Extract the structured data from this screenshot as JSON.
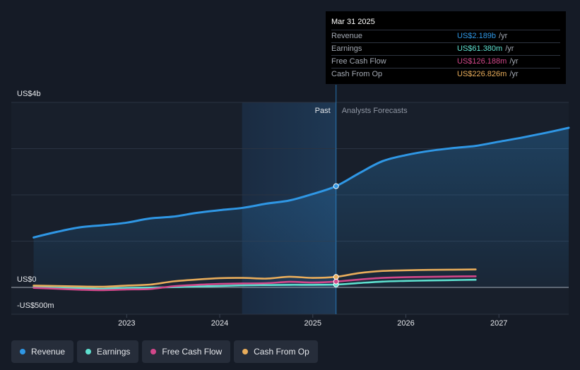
{
  "chart_data": {
    "type": "line",
    "title": "",
    "xlabel": "",
    "ylabel": "",
    "ylim": [
      -500,
      4000
    ],
    "y_labels": [
      {
        "value": 4000,
        "text": "US$4b"
      },
      {
        "value": 0,
        "text": "US$0"
      },
      {
        "value": -500,
        "text": "-US$500m"
      }
    ],
    "x_ticks": [
      {
        "value": 2023,
        "text": "2023"
      },
      {
        "value": 2024,
        "text": "2024"
      },
      {
        "value": 2025,
        "text": "2025"
      },
      {
        "value": 2026,
        "text": "2026"
      },
      {
        "value": 2027,
        "text": "2027"
      }
    ],
    "xlim": [
      2021.76,
      2027.75
    ],
    "shaded_region_start": 2024.24,
    "divider_x": 2025.25,
    "past_label": "Past",
    "forecast_label": "Analysts Forecasts",
    "series": [
      {
        "name": "Revenue",
        "color": "#2f97e5",
        "filled": true,
        "points": [
          [
            2022.0,
            1080
          ],
          [
            2022.25,
            1200
          ],
          [
            2022.5,
            1300
          ],
          [
            2022.75,
            1345
          ],
          [
            2023.0,
            1400
          ],
          [
            2023.25,
            1490
          ],
          [
            2023.5,
            1530
          ],
          [
            2023.75,
            1610
          ],
          [
            2024.0,
            1670
          ],
          [
            2024.25,
            1720
          ],
          [
            2024.5,
            1810
          ],
          [
            2024.75,
            1880
          ],
          [
            2025.0,
            2020
          ],
          [
            2025.25,
            2189
          ],
          [
            2025.5,
            2470
          ],
          [
            2025.75,
            2730
          ],
          [
            2026.0,
            2860
          ],
          [
            2026.25,
            2950
          ],
          [
            2026.5,
            3010
          ],
          [
            2026.75,
            3060
          ],
          [
            2027.0,
            3150
          ],
          [
            2027.25,
            3240
          ],
          [
            2027.5,
            3340
          ],
          [
            2027.75,
            3450
          ]
        ]
      },
      {
        "name": "Earnings",
        "color": "#5ee0cf",
        "filled": false,
        "points": [
          [
            2022.0,
            10
          ],
          [
            2022.25,
            -10
          ],
          [
            2022.5,
            -20
          ],
          [
            2022.75,
            -30
          ],
          [
            2023.0,
            -10
          ],
          [
            2023.25,
            -5
          ],
          [
            2023.5,
            5
          ],
          [
            2023.75,
            20
          ],
          [
            2024.0,
            30
          ],
          [
            2024.25,
            45
          ],
          [
            2024.5,
            50
          ],
          [
            2024.75,
            55
          ],
          [
            2025.0,
            55
          ],
          [
            2025.25,
            61
          ],
          [
            2025.5,
            95
          ],
          [
            2025.75,
            125
          ],
          [
            2026.0,
            140
          ],
          [
            2026.25,
            150
          ],
          [
            2026.5,
            158
          ],
          [
            2026.75,
            165
          ]
        ]
      },
      {
        "name": "Free Cash Flow",
        "color": "#d2478a",
        "filled": false,
        "points": [
          [
            2022.0,
            -10
          ],
          [
            2022.25,
            -30
          ],
          [
            2022.5,
            -50
          ],
          [
            2022.75,
            -60
          ],
          [
            2023.0,
            -45
          ],
          [
            2023.25,
            -35
          ],
          [
            2023.5,
            25
          ],
          [
            2023.75,
            55
          ],
          [
            2024.0,
            75
          ],
          [
            2024.25,
            85
          ],
          [
            2024.5,
            90
          ],
          [
            2024.75,
            120
          ],
          [
            2025.0,
            105
          ],
          [
            2025.25,
            126
          ],
          [
            2025.5,
            170
          ],
          [
            2025.75,
            205
          ],
          [
            2026.0,
            220
          ],
          [
            2026.25,
            228
          ],
          [
            2026.5,
            235
          ],
          [
            2026.75,
            240
          ]
        ]
      },
      {
        "name": "Cash From Op",
        "color": "#e9ad5b",
        "filled": false,
        "points": [
          [
            2022.0,
            40
          ],
          [
            2022.25,
            30
          ],
          [
            2022.5,
            20
          ],
          [
            2022.75,
            15
          ],
          [
            2023.0,
            40
          ],
          [
            2023.25,
            60
          ],
          [
            2023.5,
            130
          ],
          [
            2023.75,
            170
          ],
          [
            2024.0,
            200
          ],
          [
            2024.25,
            205
          ],
          [
            2024.5,
            190
          ],
          [
            2024.75,
            230
          ],
          [
            2025.0,
            205
          ],
          [
            2025.25,
            227
          ],
          [
            2025.5,
            310
          ],
          [
            2025.75,
            355
          ],
          [
            2026.0,
            370
          ],
          [
            2026.25,
            378
          ],
          [
            2026.5,
            383
          ],
          [
            2026.75,
            388
          ]
        ]
      }
    ],
    "highlight": {
      "x": 2025.25,
      "date": "Mar 31 2025",
      "values": [
        2189,
        61.38,
        126.188,
        226.826
      ]
    }
  },
  "tooltip": {
    "date": "Mar 31 2025",
    "unit": "/yr",
    "rows": [
      {
        "label": "Revenue",
        "value": "US$2.189b",
        "color": "#2f97e5"
      },
      {
        "label": "Earnings",
        "value": "US$61.380m",
        "color": "#5ee0cf"
      },
      {
        "label": "Free Cash Flow",
        "value": "US$126.188m",
        "color": "#d2478a"
      },
      {
        "label": "Cash From Op",
        "value": "US$226.826m",
        "color": "#e9ad5b"
      }
    ]
  },
  "legend": [
    {
      "label": "Revenue",
      "color": "#2f97e5"
    },
    {
      "label": "Earnings",
      "color": "#5ee0cf"
    },
    {
      "label": "Free Cash Flow",
      "color": "#d2478a"
    },
    {
      "label": "Cash From Op",
      "color": "#e9ad5b"
    }
  ]
}
